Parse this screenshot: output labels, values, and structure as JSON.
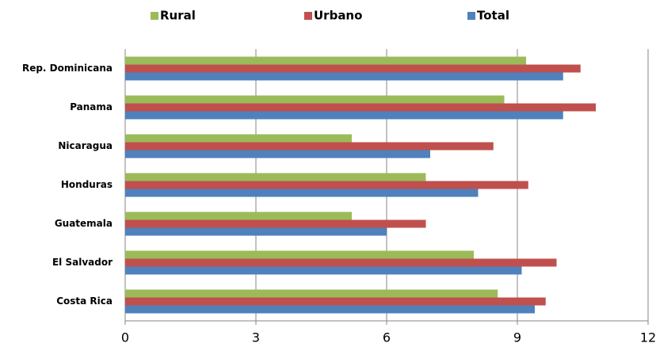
{
  "chart_data": {
    "type": "hbar",
    "categories": [
      "Rep. Dominicana",
      "Panama",
      "Nicaragua",
      "Honduras",
      "Guatemala",
      "El Salvador",
      "Costa Rica"
    ],
    "series": [
      {
        "name": "Rural",
        "color": "#9bbb59",
        "values": [
          9.2,
          8.7,
          5.2,
          6.9,
          5.2,
          8.0,
          8.55
        ]
      },
      {
        "name": "Urbano",
        "color": "#c0504d",
        "values": [
          10.45,
          10.8,
          8.45,
          9.25,
          6.9,
          9.9,
          9.65
        ]
      },
      {
        "name": "Total",
        "color": "#4f81bd",
        "values": [
          10.05,
          10.05,
          7.0,
          8.1,
          6.0,
          9.1,
          9.4
        ]
      }
    ],
    "xlim": [
      0,
      12
    ],
    "xticks": [
      0,
      3,
      6,
      9,
      12
    ],
    "grid": true,
    "legend": "top"
  }
}
